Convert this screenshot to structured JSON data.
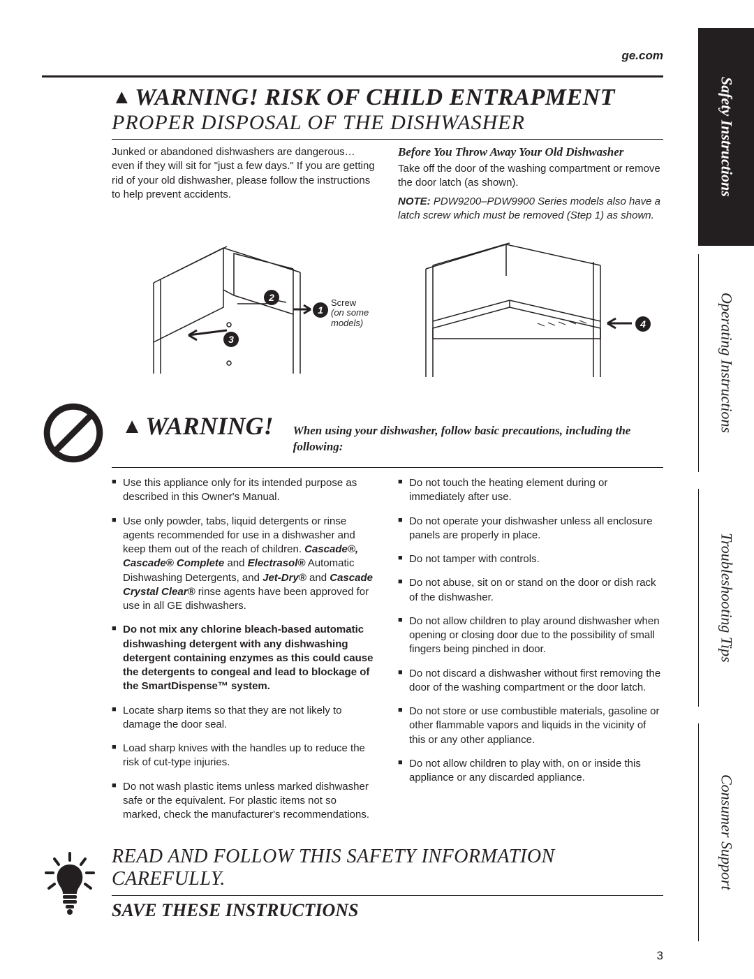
{
  "url": "ge.com",
  "heading": {
    "line1_prefix": "▲",
    "line1": "WARNING! RISK OF CHILD ENTRAPMENT",
    "line2": "PROPER DISPOSAL OF THE DISHWASHER"
  },
  "intro_left": "Junked or abandoned dishwashers are dangerous… even if they will sit for \"just a few days.\" If you are getting rid of your old dishwasher, please follow the instructions to help prevent accidents.",
  "right": {
    "subhead": "Before You Throw Away Your Old Dishwasher",
    "p1": "Take off the door of the washing compartment or remove the door latch (as shown).",
    "note_label": "NOTE:",
    "note_body": " PDW9200–PDW9900 Series models also have a latch screw which must be removed (Step 1) as shown."
  },
  "diagram1": {
    "badges": {
      "1": "1",
      "2": "2",
      "3": "3"
    },
    "screw_label": {
      "l1": "Screw",
      "l2": "(on some",
      "l3": "models)"
    }
  },
  "diagram2": {
    "badge": "4"
  },
  "warning": {
    "prefix": "▲",
    "title": "WARNING!",
    "sub": "When using your dishwasher, follow basic precautions, including the following:"
  },
  "left_bullets": [
    {
      "text": "Use this appliance only for its intended purpose as described in this Owner's Manual."
    },
    {
      "html": "Use only powder, tabs, liquid detergents or rinse agents recommended for use in a dishwasher and keep them out of the reach of children. <span class='bold'><i>Cascade®, Cascade® Complete</i></span> and <span class='bold'><i>Electrasol®</i></span> Automatic Dishwashing Detergents, and <span class='bold'><i>Jet-Dry®</i></span> and <span class='bold'><i>Cascade Crystal Clear®</i></span> rinse agents have been approved for use in all GE dishwashers."
    },
    {
      "bold": true,
      "text": "Do not mix any chlorine bleach-based automatic dishwashing detergent with any dishwashing detergent containing enzymes as this could cause the detergents to congeal and lead to blockage of the SmartDispense™ system."
    },
    {
      "text": "Locate sharp items so that they are not likely to damage the door seal."
    },
    {
      "text": "Load sharp knives with the handles up to reduce the risk of cut-type injuries."
    },
    {
      "text": "Do not wash plastic items unless marked dishwasher safe or the equivalent. For plastic items not so marked, check the manufacturer's recommendations."
    }
  ],
  "right_bullets": [
    {
      "text": "Do not touch the heating element during or immediately after use."
    },
    {
      "text": "Do not operate your dishwasher unless all enclosure panels are properly in place."
    },
    {
      "text": "Do not tamper with controls."
    },
    {
      "text": "Do not abuse, sit on or stand on the door or dish rack of the dishwasher."
    },
    {
      "text": "Do not allow children to play around dishwasher when opening or closing door due to the possibility of small fingers being pinched in door."
    },
    {
      "text": "Do not discard a dishwasher without first removing the door of the washing compartment or the door latch."
    },
    {
      "text": "Do not store or use combustible materials, gasoline or other flammable vapors and liquids in the vicinity of this or any other appliance."
    },
    {
      "text": "Do not allow children to play with, on or inside this appliance or any discarded appliance."
    }
  ],
  "footer": {
    "line1": "READ AND FOLLOW THIS SAFETY INFORMATION CAREFULLY.",
    "line2": "SAVE THESE INSTRUCTIONS"
  },
  "page_number": "3",
  "tabs": {
    "t1": "Safety Instructions",
    "t2": "Operating Instructions",
    "t3": "Troubleshooting Tips",
    "t4": "Consumer Support"
  }
}
